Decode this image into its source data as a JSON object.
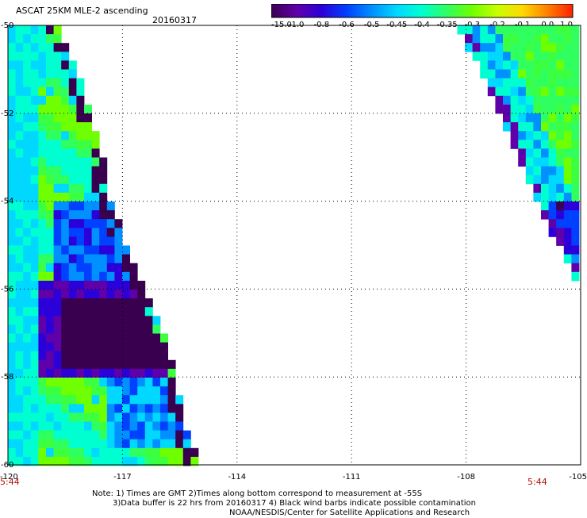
{
  "header": {
    "title": "ASCAT 25KM MLE-2 ascending",
    "date": "20160317"
  },
  "colorbar": {
    "labels": [
      "-15.0",
      "-1.0",
      "-0.8",
      "-0.6",
      "-0.5",
      "-0.45",
      "-0.4",
      "-0.35",
      "-0.3",
      "-0.2",
      "-0.1",
      "0.0",
      "1.0"
    ],
    "colors": [
      "#3a0050",
      "#6000a8",
      "#2c00d8",
      "#0040ff",
      "#0090ff",
      "#00d8ff",
      "#00ffd0",
      "#30ff60",
      "#70ff00",
      "#c8ff00",
      "#ffd800",
      "#ff8000",
      "#ff2000"
    ]
  },
  "axes": {
    "x_ticks": [
      "-120",
      "-117",
      "-114",
      "-111",
      "-108",
      "-105"
    ],
    "y_ticks": [
      "-50",
      "-52",
      "-54",
      "-56",
      "-58",
      "-60"
    ],
    "x_range": [
      -120,
      -105
    ],
    "y_range": [
      -50,
      -60
    ]
  },
  "times": {
    "left": "5:44",
    "right": "5:44"
  },
  "notes": {
    "line1": "Note: 1) Times are GMT 2)Times along bottom correspond to measurement at -55S",
    "line2": "3)Data buffer is 22 hrs from 20160317 4) Black wind barbs indicate possible contamination",
    "line3": "NOAA/NESDIS/Center for Satellite Applications and Research"
  },
  "swaths": {
    "left_edge": [
      [
        -50,
        -118.7
      ],
      [
        -51,
        -118.2
      ],
      [
        -52,
        -117.8
      ],
      [
        -53,
        -117.5
      ],
      [
        -54,
        -117.3
      ],
      [
        -55,
        -116.9
      ],
      [
        -56,
        -116.4
      ],
      [
        -57,
        -115.9
      ],
      [
        -58,
        -115.6
      ],
      [
        -59,
        -115.4
      ],
      [
        -60,
        -115.0
      ]
    ],
    "right_edge": [
      [
        -50,
        -108.3
      ],
      [
        -51,
        -107.6
      ],
      [
        -52,
        -107.1
      ],
      [
        -53,
        -106.6
      ],
      [
        -54,
        -106.2
      ],
      [
        -55,
        -105.6
      ],
      [
        -56,
        -105.0
      ]
    ],
    "regions": [
      {
        "name": "left-swath-dark-core",
        "lat": [
          -56.1,
          -57.9
        ],
        "lon_left": [
          -119.0,
          -118.3
        ]
      },
      {
        "name": "right-swath-dark-patch",
        "lat": [
          -54.0,
          -54.9
        ],
        "lon_right": -105.0
      }
    ]
  }
}
